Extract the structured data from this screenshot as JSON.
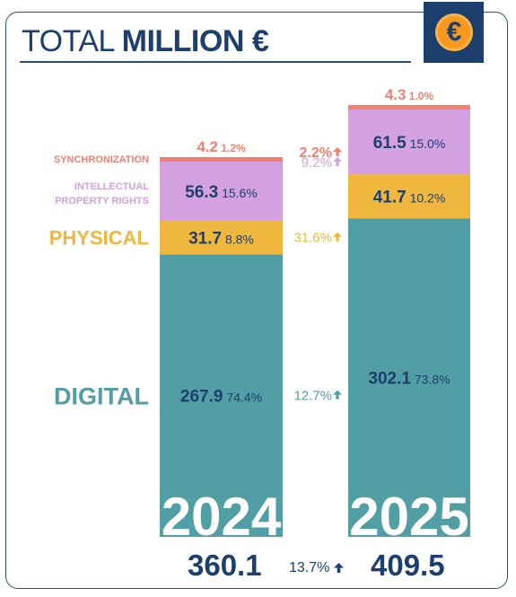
{
  "header": {
    "title_light": "TOTAL",
    "title_bold": "MILLION €",
    "icon": "euro-coin-icon",
    "icon_glyph": "€"
  },
  "colors": {
    "synchronization": "#f08070",
    "intellectual_property": "#d3a1e0",
    "physical": "#efb73d",
    "digital": "#529ea5",
    "navy": "#1c3f6e"
  },
  "chart_data": {
    "type": "bar",
    "stacked": true,
    "categories": [
      "2024",
      "2025"
    ],
    "series": [
      {
        "name": "DIGITAL",
        "values": [
          267.9,
          302.1
        ],
        "shares": [
          "74.4%",
          "73.8%"
        ],
        "change": "12.7%",
        "color": "#529ea5"
      },
      {
        "name": "PHYSICAL",
        "values": [
          31.7,
          41.7
        ],
        "shares": [
          "8.8%",
          "10.2%"
        ],
        "change": "31.6%",
        "color": "#efb73d"
      },
      {
        "name": "INTELLECTUAL PROPERTY RIGHTS",
        "label_lines": [
          "INTELLECTUAL",
          "PROPERTY RIGHTS"
        ],
        "values": [
          56.3,
          61.5
        ],
        "shares": [
          "15.6%",
          "15.0%"
        ],
        "change": "9.2%",
        "color": "#d3a1e0"
      },
      {
        "name": "SYNCHRONIZATION",
        "values": [
          4.2,
          4.3
        ],
        "shares": [
          "1.2%",
          "1.0%"
        ],
        "change": "2.2%",
        "color": "#f08070"
      }
    ],
    "value_labels": [
      [
        "267.9",
        "302.1"
      ],
      [
        "31.7",
        "41.7"
      ],
      [
        "56.3",
        "61.5"
      ],
      [
        "4.2",
        "4.3"
      ]
    ],
    "totals": [
      "360.1",
      "409.5"
    ],
    "total_change": "13.7%"
  }
}
